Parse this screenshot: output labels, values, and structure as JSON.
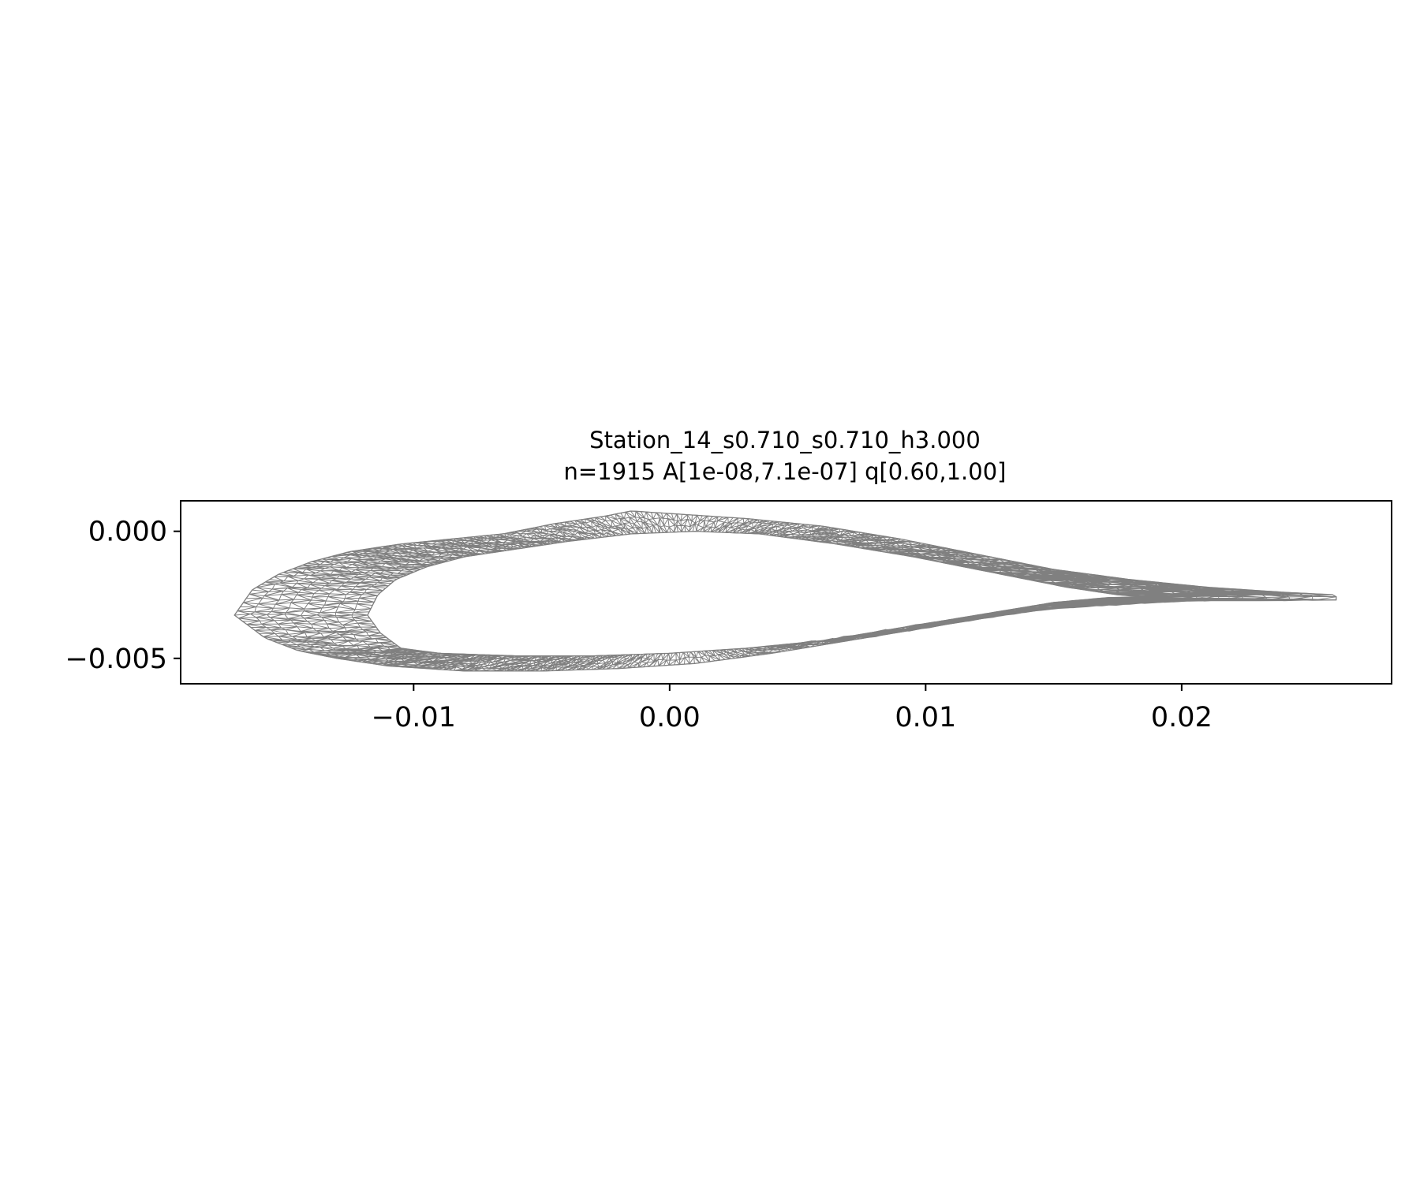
{
  "chart_data": {
    "type": "mesh",
    "title": "Station_14_s0.710_s0.710_h3.000",
    "subtitle": "n=1915  A[1e-08,7.1e-07]  q[0.60,1.00]",
    "xlabel": "",
    "ylabel": "",
    "xlim": [
      -0.0191,
      0.0282
    ],
    "ylim": [
      -0.006,
      0.0012
    ],
    "x_ticks": [
      -0.01,
      0.0,
      0.01,
      0.02
    ],
    "x_tick_labels": [
      "−0.01",
      "0.00",
      "0.01",
      "0.02"
    ],
    "y_ticks": [
      0.0,
      -0.005
    ],
    "y_tick_labels": [
      "0.000",
      "−0.005"
    ],
    "grid": false,
    "mesh_color": "#808080",
    "outer_boundary": [
      [
        -0.017,
        -0.0033
      ],
      [
        -0.0163,
        -0.0023
      ],
      [
        -0.0153,
        -0.0017
      ],
      [
        -0.014,
        -0.0012
      ],
      [
        -0.0125,
        -0.0008
      ],
      [
        -0.0105,
        -0.0005
      ],
      [
        -0.0085,
        -0.0003
      ],
      [
        -0.0065,
        -0.0001
      ],
      [
        -0.0045,
        0.0003
      ],
      [
        -0.0025,
        0.0006
      ],
      [
        -0.0015,
        0.0008
      ],
      [
        0.0,
        0.0007
      ],
      [
        0.003,
        0.0005
      ],
      [
        0.006,
        0.0002
      ],
      [
        0.009,
        -0.0003
      ],
      [
        0.012,
        -0.0009
      ],
      [
        0.015,
        -0.0015
      ],
      [
        0.018,
        -0.0019
      ],
      [
        0.021,
        -0.0022
      ],
      [
        0.024,
        -0.0024
      ],
      [
        0.026,
        -0.0025
      ],
      [
        0.0261,
        -0.0027
      ],
      [
        0.0245,
        -0.0027
      ],
      [
        0.021,
        -0.0027
      ],
      [
        0.019,
        -0.0028
      ],
      [
        0.016,
        -0.0029
      ],
      [
        0.013,
        -0.0033
      ],
      [
        0.01,
        -0.0038
      ],
      [
        0.007,
        -0.0043
      ],
      [
        0.004,
        -0.0048
      ],
      [
        0.001,
        -0.0052
      ],
      [
        -0.002,
        -0.0054
      ],
      [
        -0.005,
        -0.0055
      ],
      [
        -0.008,
        -0.0055
      ],
      [
        -0.011,
        -0.0053
      ],
      [
        -0.013,
        -0.005
      ],
      [
        -0.0145,
        -0.0047
      ],
      [
        -0.0158,
        -0.0042
      ]
    ],
    "inner_boundary": [
      [
        -0.0118,
        -0.0033
      ],
      [
        -0.0114,
        -0.0025
      ],
      [
        -0.0107,
        -0.0019
      ],
      [
        -0.0095,
        -0.0014
      ],
      [
        -0.008,
        -0.001
      ],
      [
        -0.006,
        -0.0007
      ],
      [
        -0.004,
        -0.0004
      ],
      [
        -0.0015,
        -0.0001
      ],
      [
        0.001,
        0.0
      ],
      [
        0.0035,
        -0.0001
      ],
      [
        0.0065,
        -0.0005
      ],
      [
        0.0095,
        -0.001
      ],
      [
        0.0125,
        -0.0016
      ],
      [
        0.0155,
        -0.0022
      ],
      [
        0.0175,
        -0.0025
      ],
      [
        0.0188,
        -0.0026
      ],
      [
        0.0187,
        -0.0027
      ],
      [
        0.0172,
        -0.0026
      ],
      [
        0.015,
        -0.0028
      ],
      [
        0.012,
        -0.0033
      ],
      [
        0.009,
        -0.0038
      ],
      [
        0.006,
        -0.0043
      ],
      [
        0.003,
        -0.0046
      ],
      [
        0.0,
        -0.0048
      ],
      [
        -0.003,
        -0.0049
      ],
      [
        -0.006,
        -0.0049
      ],
      [
        -0.009,
        -0.0048
      ],
      [
        -0.0105,
        -0.0046
      ],
      [
        -0.0113,
        -0.004
      ]
    ]
  }
}
